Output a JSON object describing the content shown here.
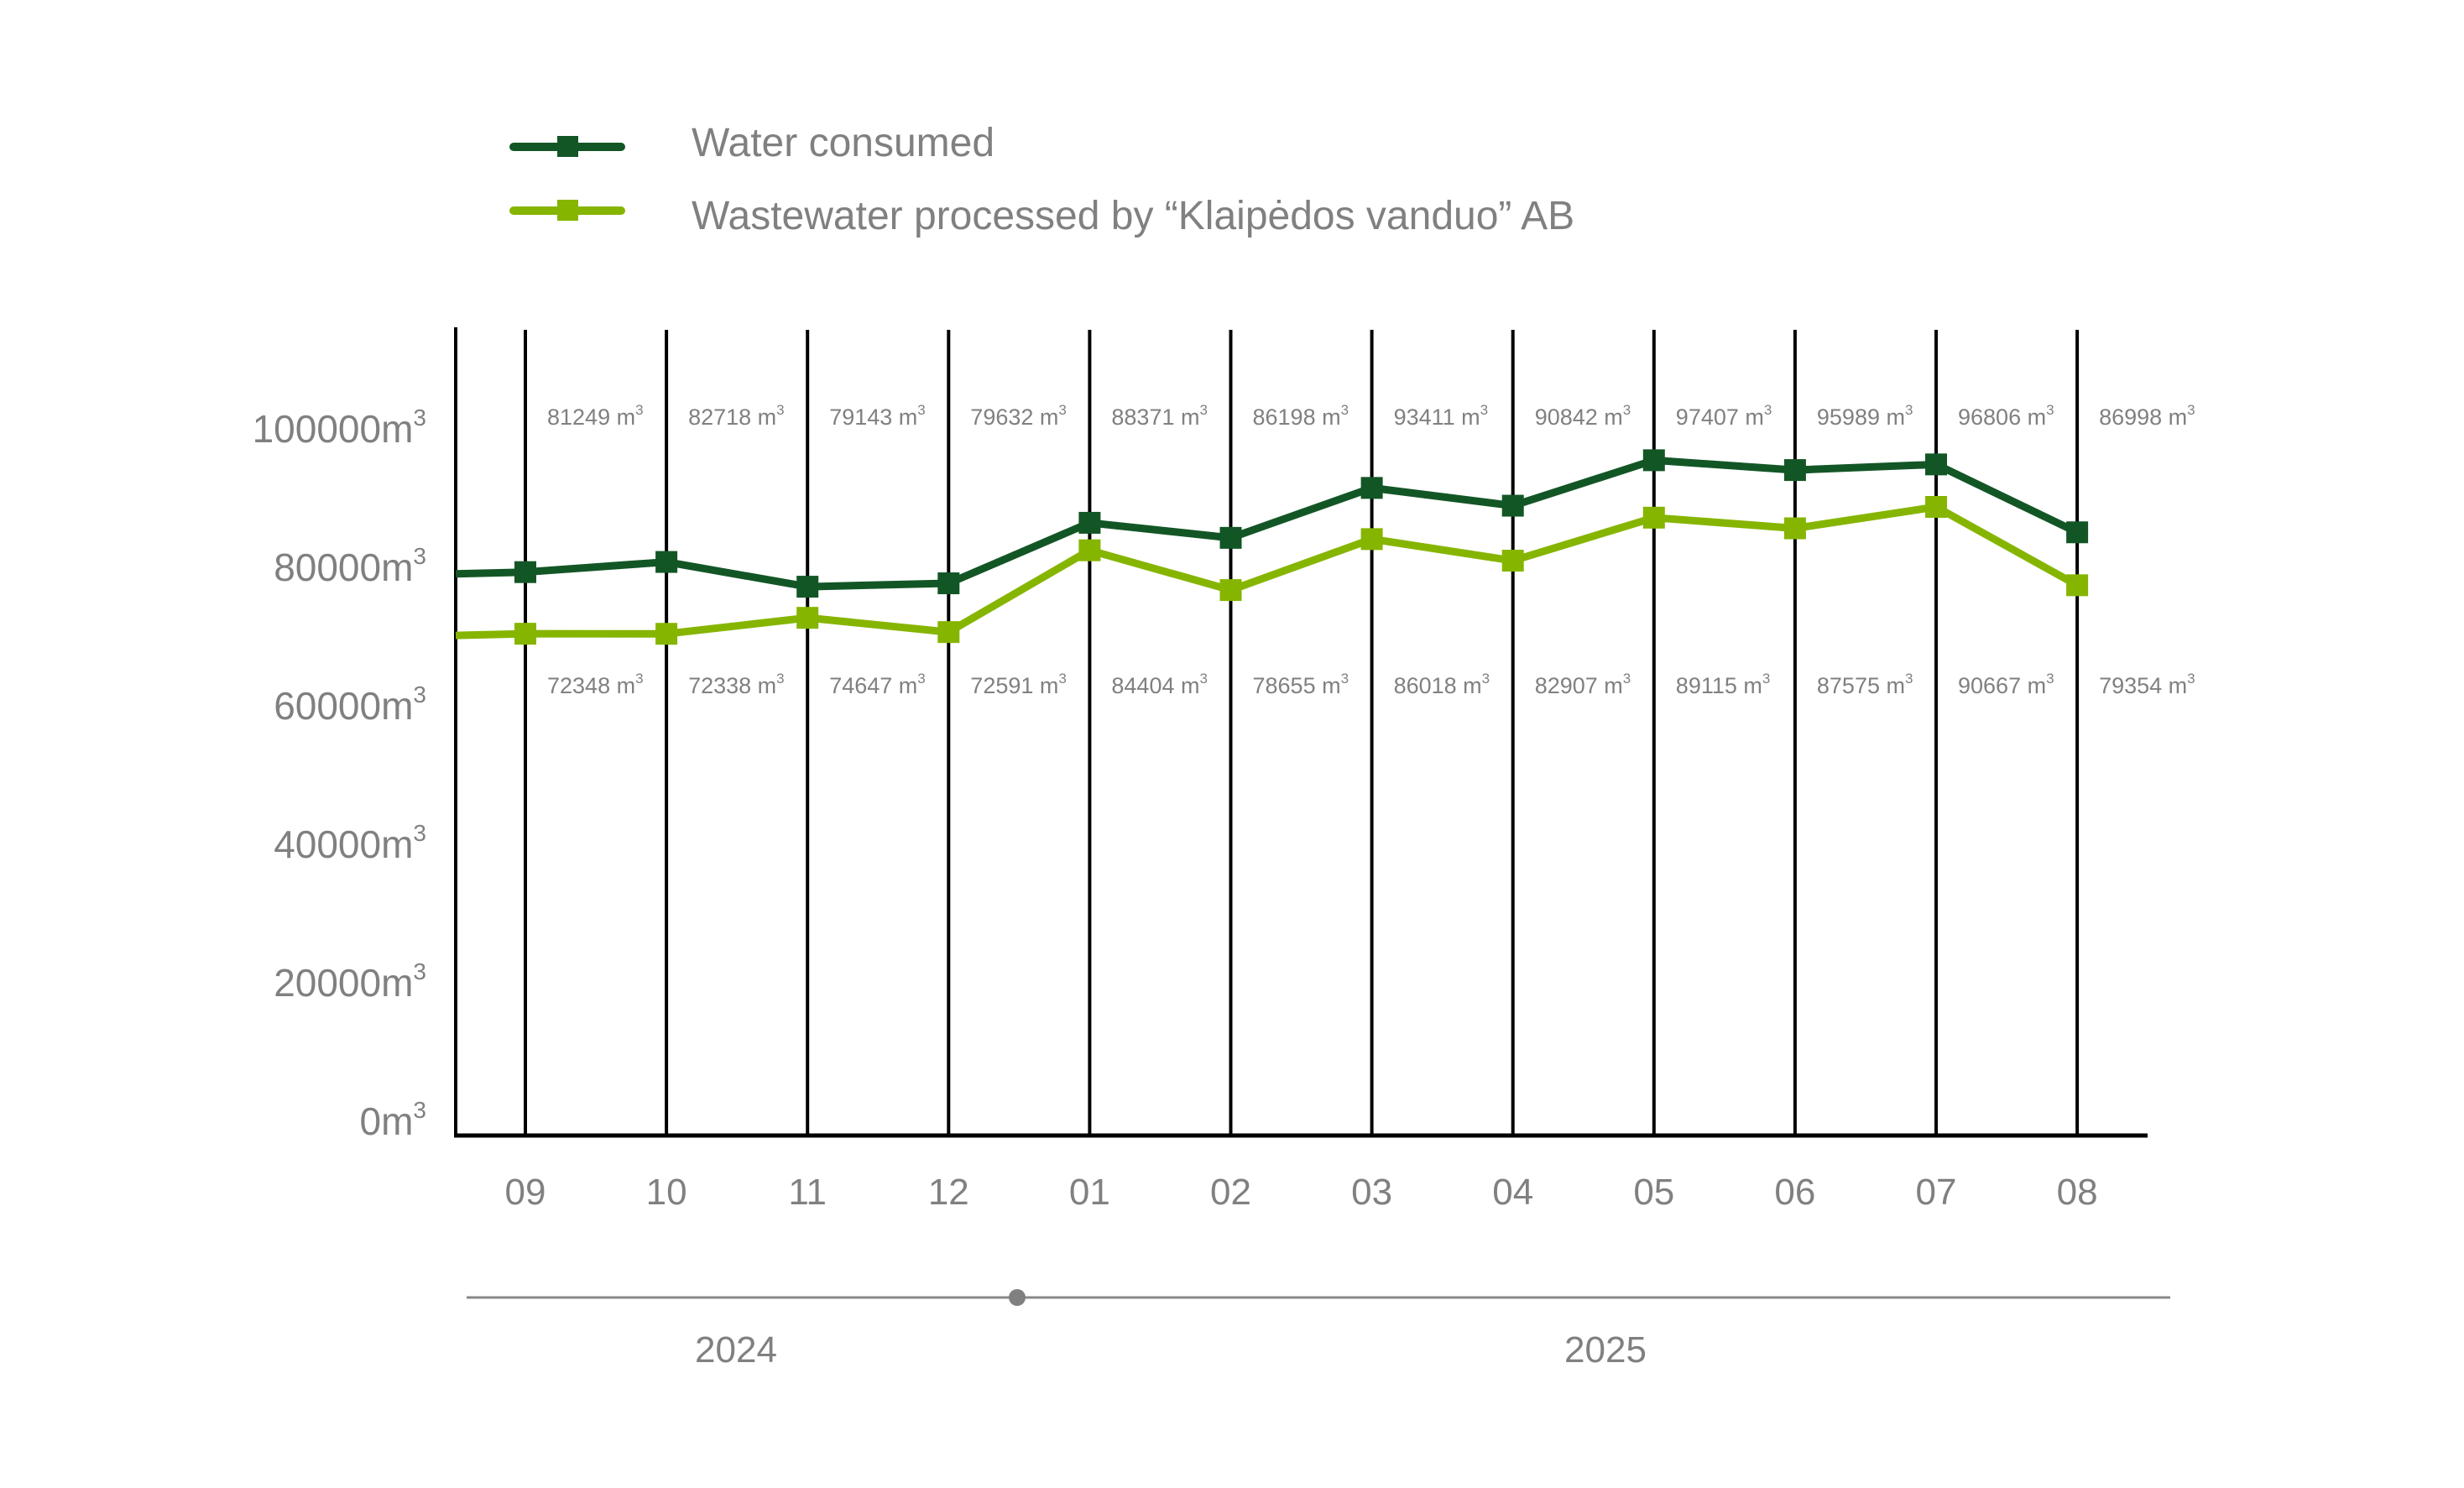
{
  "chart_data": {
    "type": "line",
    "title": "",
    "xlabel": "",
    "ylabel": "",
    "unit": "m³",
    "categories": [
      "09",
      "10",
      "11",
      "12",
      "01",
      "02",
      "03",
      "04",
      "05",
      "06",
      "07",
      "08"
    ],
    "year_groups": [
      {
        "label": "2024",
        "months": [
          "09",
          "10",
          "11",
          "12"
        ]
      },
      {
        "label": "2025",
        "months": [
          "01",
          "02",
          "03",
          "04",
          "05",
          "06",
          "07",
          "08"
        ]
      }
    ],
    "y_ticks": [
      0,
      20000,
      40000,
      60000,
      80000,
      100000
    ],
    "y_tick_labels": [
      "0m",
      "20000m",
      "40000m",
      "60000m",
      "80000m",
      "100000m"
    ],
    "y_tick_sup": "3",
    "ylim": [
      0,
      100000
    ],
    "grid": "vertical lines at each month",
    "legend_position": "top-left",
    "series": [
      {
        "name": "Water consumed",
        "color": "#135626",
        "label_position": "above",
        "values": [
          81249,
          82718,
          79143,
          79632,
          88371,
          86198,
          93411,
          90842,
          97407,
          95989,
          96806,
          86998
        ],
        "data_labels": [
          "81249 m",
          "82718 m",
          "79143 m",
          "79632 m",
          "88371 m",
          "86198 m",
          "93411 m",
          "90842 m",
          "97407 m",
          "95989 m",
          "96806 m",
          "86998 m"
        ]
      },
      {
        "name": "Wastewater processed by “Klaipėdos vanduo” AB",
        "color": "#86b500",
        "label_position": "below",
        "values": [
          72348,
          72338,
          74647,
          72591,
          84404,
          78655,
          86018,
          82907,
          89115,
          87575,
          90667,
          79354
        ],
        "data_labels": [
          "72348 m",
          "72338 m",
          "74647 m",
          "72591 m",
          "84404 m",
          "78655 m",
          "86018 m",
          "82907 m",
          "89115 m",
          "87575 m",
          "90667 m",
          "79354 m"
        ]
      }
    ],
    "data_label_sup": "3"
  },
  "colors": {
    "axis": "#000000",
    "text": "#808080",
    "timeline": "#888888"
  }
}
